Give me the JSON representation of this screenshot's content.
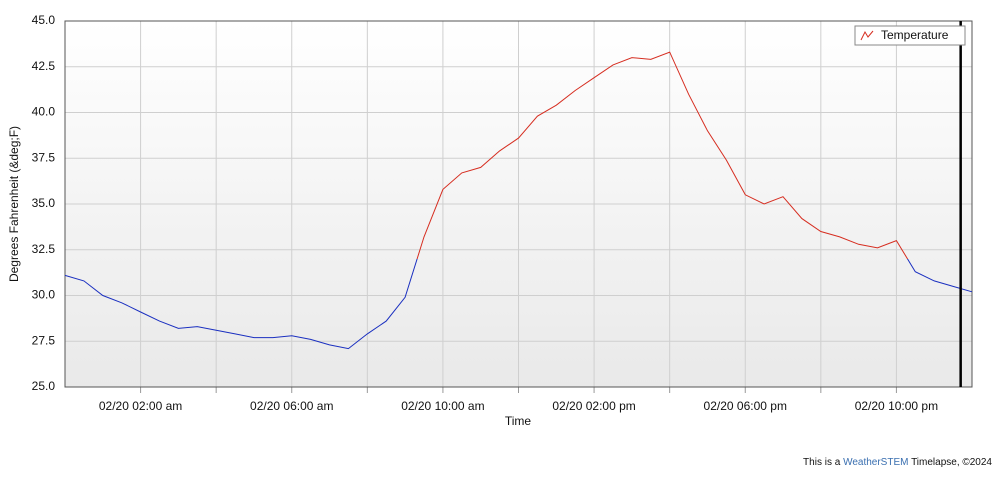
{
  "chart_data": {
    "type": "line",
    "y_label": "Degrees Fahrenheit (&deg;F)",
    "x_label": "Time",
    "x": [
      0,
      0.5,
      1,
      1.5,
      2,
      2.5,
      3,
      3.5,
      4,
      4.5,
      5,
      5.5,
      6,
      6.5,
      7,
      7.5,
      8,
      8.5,
      9,
      9.5,
      10,
      10.5,
      11,
      11.5,
      12,
      12.5,
      13,
      13.5,
      14,
      14.5,
      15,
      15.5,
      16,
      16.5,
      17,
      17.5,
      18,
      18.5,
      19,
      19.5,
      20,
      20.5,
      21,
      21.5,
      22,
      22.5,
      23,
      23.5,
      24
    ],
    "series": [
      {
        "name": "Temperature",
        "color": "#d62d20",
        "below_color": "#1a2fc0",
        "color_threshold": 32,
        "values": [
          31.1,
          30.8,
          30.0,
          29.6,
          29.1,
          28.6,
          28.2,
          28.3,
          28.1,
          27.9,
          27.7,
          27.7,
          27.8,
          27.6,
          27.3,
          27.1,
          27.9,
          28.6,
          29.9,
          33.2,
          35.8,
          36.7,
          37.0,
          37.9,
          38.6,
          39.8,
          40.4,
          41.2,
          41.9,
          42.6,
          43.0,
          42.9,
          43.3,
          41.0,
          39.0,
          37.4,
          35.5,
          35.0,
          35.4,
          34.2,
          33.5,
          33.2,
          32.8,
          32.6,
          33.0,
          31.3,
          30.8,
          30.5,
          30.2
        ]
      }
    ],
    "xlim": [
      0,
      24
    ],
    "xticks": [
      {
        "value": 2,
        "label": "02/20 02:00 am"
      },
      {
        "value": 6,
        "label": "02/20 06:00 am"
      },
      {
        "value": 10,
        "label": "02/20 10:00 am"
      },
      {
        "value": 14,
        "label": "02/20 02:00 pm"
      },
      {
        "value": 18,
        "label": "02/20 06:00 pm"
      },
      {
        "value": 22,
        "label": "02/20 10:00 pm"
      }
    ],
    "xminor": [
      4,
      8,
      12,
      16,
      20
    ],
    "ylim": [
      25,
      45
    ],
    "yticks": [
      {
        "value": 25,
        "label": "25.0"
      },
      27.5,
      {
        "value": 30,
        "label": "30.0"
      },
      32.5,
      {
        "value": 35,
        "label": "35.0"
      },
      37.5,
      {
        "value": 40,
        "label": "40.0"
      },
      42.5,
      {
        "value": 45,
        "label": "45.0"
      }
    ],
    "marker_x": 23.7,
    "grid": true,
    "legend": "top-right"
  },
  "footer": {
    "prefix": "This is a",
    "brand": "WeatherSTEM",
    "suffix": "Timelapse, ©2024"
  }
}
